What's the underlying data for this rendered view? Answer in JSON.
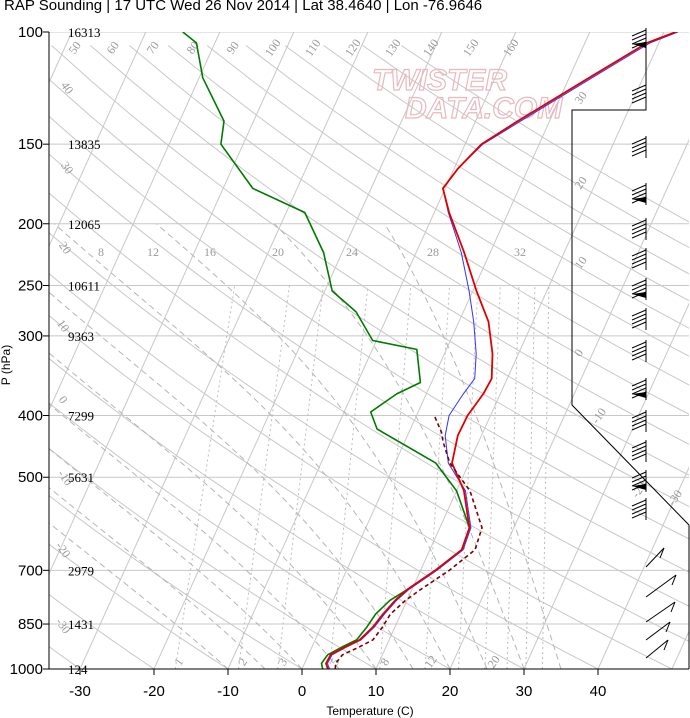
{
  "title": "RAP Sounding | 17 UTC Wed 26 Nov 2014 | Lat 38.4640 | Lon -76.9646",
  "watermark": {
    "line1": "TWISTER",
    "line2": "DATA.COM",
    "color": "#e7b9bd"
  },
  "chart_data": {
    "type": "line",
    "xlabel": "Temperature (C)",
    "ylabel": "P (hPa)",
    "xlim": [
      -34,
      52
    ],
    "ylim": [
      1000,
      100
    ],
    "x_ticks": [
      "-30",
      "-20",
      "-10",
      "0",
      "10",
      "20",
      "30",
      "40"
    ],
    "y_ticks": [
      "100",
      "150",
      "200",
      "250",
      "300",
      "400",
      "500",
      "700",
      "850",
      "1000"
    ],
    "y_scale": "log",
    "heights": [
      {
        "p": 100,
        "label": "16313"
      },
      {
        "p": 150,
        "label": "13835"
      },
      {
        "p": 200,
        "label": "12065"
      },
      {
        "p": 250,
        "label": "10611"
      },
      {
        "p": 300,
        "label": "9363"
      },
      {
        "p": 400,
        "label": "7299"
      },
      {
        "p": 500,
        "label": "5631"
      },
      {
        "p": 700,
        "label": "2979"
      },
      {
        "p": 850,
        "label": "1431"
      },
      {
        "p": 1000,
        "label": "124"
      }
    ],
    "mixing_ratio_labels": [
      "8",
      "12",
      "16",
      "20",
      "24",
      "28",
      "32"
    ],
    "bottom_mixing_labels": [
      "1",
      "2",
      "3",
      "5",
      "8",
      "12",
      "20"
    ],
    "theta_labels": [
      "50",
      "60",
      "70",
      "80",
      "90",
      "100",
      "110",
      "120",
      "130",
      "140",
      "150",
      "160"
    ],
    "theta_e_labels": [
      "40",
      "30",
      "20",
      "10",
      "0",
      "-10",
      "-20",
      "-30"
    ],
    "right_skew_labels": [
      "30",
      "20",
      "10",
      "0",
      "-10",
      "-20",
      "-30"
    ],
    "colors": {
      "temperature": "#e00000",
      "dewpoint": "#007a00",
      "virtual_temperature": "#3333ff",
      "parcel": "#7a0000",
      "grid": "#c8c8c8"
    },
    "series": [
      {
        "name": "Temperature",
        "points": [
          [
            3.5,
            1000
          ],
          [
            2.9,
            980
          ],
          [
            3.0,
            950
          ],
          [
            4.4,
            925
          ],
          [
            6.0,
            900
          ],
          [
            7.0,
            860
          ],
          [
            7.6,
            820
          ],
          [
            8.4,
            780
          ],
          [
            9.4,
            750
          ],
          [
            12.0,
            700
          ],
          [
            14.3,
            650
          ],
          [
            14.0,
            600
          ],
          [
            11.0,
            525
          ],
          [
            7.7,
            475
          ],
          [
            6.8,
            430
          ],
          [
            6.9,
            400
          ],
          [
            7.7,
            370
          ],
          [
            7.9,
            350
          ],
          [
            6.5,
            320
          ],
          [
            4.0,
            285
          ],
          [
            0.5,
            255
          ],
          [
            -3.5,
            222
          ],
          [
            -8.0,
            192
          ],
          [
            -10.3,
            176
          ],
          [
            -9.5,
            164
          ],
          [
            -7.8,
            150
          ],
          [
            -4.3,
            138
          ],
          [
            2.7,
            118
          ],
          [
            8.4,
            104
          ],
          [
            11.6,
            100
          ]
        ]
      },
      {
        "name": "Virtual Temperature",
        "points": [
          [
            3.7,
            1000
          ],
          [
            3.1,
            980
          ],
          [
            3.2,
            950
          ],
          [
            4.6,
            925
          ],
          [
            6.2,
            900
          ],
          [
            7.2,
            860
          ],
          [
            7.8,
            820
          ],
          [
            8.6,
            780
          ],
          [
            9.6,
            750
          ],
          [
            12.2,
            700
          ],
          [
            14.5,
            650
          ],
          [
            14.2,
            600
          ],
          [
            11.2,
            525
          ],
          [
            7.2,
            475
          ],
          [
            5.1,
            430
          ],
          [
            4.4,
            400
          ],
          [
            5.0,
            370
          ],
          [
            5.6,
            350
          ],
          [
            4.3,
            320
          ],
          [
            2.0,
            285
          ],
          [
            -0.5,
            255
          ],
          [
            -3.9,
            222
          ],
          [
            -8.1,
            192
          ],
          [
            -10.3,
            176
          ],
          [
            -9.5,
            164
          ],
          [
            -7.6,
            150
          ],
          [
            -3.9,
            138
          ],
          [
            3.1,
            118
          ],
          [
            8.8,
            104
          ],
          [
            11.9,
            100
          ]
        ]
      },
      {
        "name": "Dewpoint",
        "points": [
          [
            2.8,
            1000
          ],
          [
            2.3,
            980
          ],
          [
            2.6,
            950
          ],
          [
            4.0,
            925
          ],
          [
            5.6,
            900
          ],
          [
            6.2,
            860
          ],
          [
            6.6,
            820
          ],
          [
            7.7,
            780
          ],
          [
            9.4,
            750
          ],
          [
            12.0,
            700
          ],
          [
            14.3,
            650
          ],
          [
            14.0,
            600
          ],
          [
            10.0,
            525
          ],
          [
            5.5,
            475
          ],
          [
            -4.5,
            420
          ],
          [
            -6.4,
            395
          ],
          [
            -4.0,
            370
          ],
          [
            -1.5,
            355
          ],
          [
            -4.0,
            315
          ],
          [
            -10.5,
            305
          ],
          [
            -14.5,
            275
          ],
          [
            -19.0,
            255
          ],
          [
            -22.5,
            222
          ],
          [
            -27.5,
            192
          ],
          [
            -36.0,
            176
          ],
          [
            -43.0,
            150
          ],
          [
            -44.0,
            138
          ],
          [
            -49.5,
            118
          ],
          [
            -52.5,
            104
          ],
          [
            -55.0,
            100
          ]
        ]
      },
      {
        "name": "Parcel",
        "points": [
          [
            4.5,
            1000
          ],
          [
            4.2,
            980
          ],
          [
            4.6,
            950
          ],
          [
            6.3,
            925
          ],
          [
            7.8,
            900
          ],
          [
            8.3,
            860
          ],
          [
            8.6,
            820
          ],
          [
            9.8,
            780
          ],
          [
            11.2,
            750
          ],
          [
            13.9,
            700
          ],
          [
            16.1,
            650
          ],
          [
            15.7,
            600
          ],
          [
            11.8,
            525
          ],
          [
            7.4,
            475
          ],
          [
            5.2,
            440
          ],
          [
            4.4,
            425
          ],
          [
            2.4,
            400
          ]
        ]
      }
    ]
  }
}
